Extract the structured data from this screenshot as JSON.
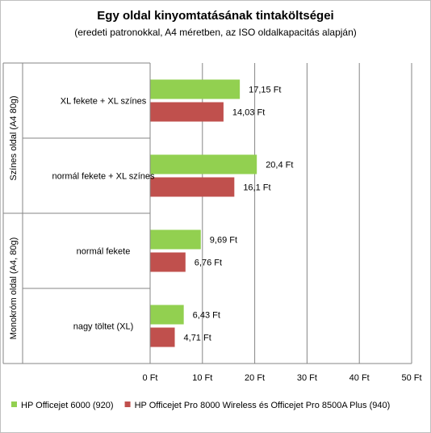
{
  "chart_data": {
    "type": "bar",
    "orientation": "horizontal",
    "title": "Egy oldal kinyomtatásának  tintaköltségei",
    "subtitle": "(eredeti patronokkal, A4 méretben, az ISO oldalkapacitás alapján)",
    "groups": [
      {
        "label": "Színes oldal (A4 80g)",
        "categories": [
          "XL fekete + XL színes",
          "normál fekete + XL színes"
        ]
      },
      {
        "label": "Monokróm oldal (A4, 80g)",
        "categories": [
          "normál fekete",
          "nagy töltet (XL)"
        ]
      }
    ],
    "categories": [
      "XL fekete + XL színes",
      "normál fekete + XL színes",
      "normál fekete",
      "nagy töltet (XL)"
    ],
    "series": [
      {
        "name": "HP Officejet 6000 (920)",
        "color": "#92d050",
        "values": [
          17.15,
          20.4,
          9.69,
          6.43
        ],
        "labels": [
          "17,15 Ft",
          "20,4 Ft",
          "9,69 Ft",
          "6,43 Ft"
        ]
      },
      {
        "name": "HP Officejet Pro 8000 Wireless és Officejet Pro 8500A Plus (940)",
        "color": "#c0504d",
        "values": [
          14.03,
          16.1,
          6.76,
          4.71
        ],
        "labels": [
          "14,03 Ft",
          "16,1 Ft",
          "6,76 Ft",
          "4,71 Ft"
        ]
      }
    ],
    "xlim": [
      0,
      50
    ],
    "xticks": [
      {
        "value": 0,
        "label": "0 Ft"
      },
      {
        "value": 10,
        "label": "10 Ft"
      },
      {
        "value": 20,
        "label": "20 Ft"
      },
      {
        "value": 30,
        "label": "30 Ft"
      },
      {
        "value": 40,
        "label": "40 Ft"
      },
      {
        "value": 50,
        "label": "50 Ft"
      }
    ],
    "grid": true,
    "legend_position": "bottom"
  }
}
